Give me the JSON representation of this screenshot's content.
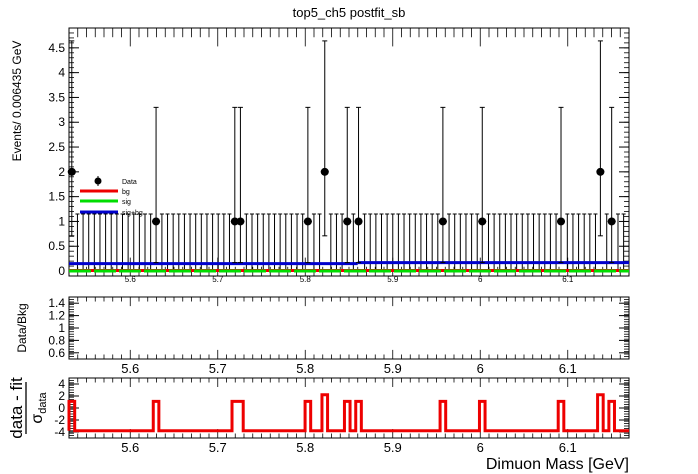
{
  "header": {
    "title": "top5_ch5   postfit_sb"
  },
  "legend": {
    "items": [
      {
        "label": "Data",
        "color": "#000000",
        "kind": "marker"
      },
      {
        "label": "bg",
        "color": "#ee0000",
        "kind": "line"
      },
      {
        "label": "sig",
        "color": "#00dd00",
        "kind": "line"
      },
      {
        "label": "sig+bg",
        "color": "#0000cc",
        "kind": "line"
      }
    ]
  },
  "chart_data": [
    {
      "type": "scatter",
      "panel": "main",
      "title": "top5_ch5   postfit_sb",
      "ylabel": "Events/ 0.006435 GeV",
      "xlim": [
        5.53,
        6.17
      ],
      "ylim": [
        -0.1,
        4.9
      ],
      "yticks": [
        0,
        0.5,
        1,
        1.5,
        2,
        2.5,
        3,
        3.5,
        4,
        4.5
      ],
      "ytick_labels": [
        "0",
        "0.5",
        "1",
        "1.5",
        "2",
        "2.5",
        "3",
        "3.5",
        "4",
        "4.5"
      ],
      "xticks": [
        5.6,
        5.7,
        5.8,
        5.9,
        6.0,
        6.1
      ],
      "xtick_labels": [
        "5.6",
        "5.7",
        "5.8",
        "5.9",
        "6",
        "6.1"
      ],
      "bin_width": 0.006435,
      "data_points": [
        {
          "x": 5.5332,
          "y": 2,
          "lo": 1.29,
          "hi": 2.64
        },
        {
          "x": 5.6295,
          "y": 1,
          "lo": 0.83,
          "hi": 2.3
        },
        {
          "x": 5.7195,
          "y": 1,
          "lo": 0.83,
          "hi": 2.3
        },
        {
          "x": 5.7259,
          "y": 1,
          "lo": 0.83,
          "hi": 2.3
        },
        {
          "x": 5.803,
          "y": 1,
          "lo": 0.83,
          "hi": 2.3
        },
        {
          "x": 5.8223,
          "y": 2,
          "lo": 1.29,
          "hi": 2.64
        },
        {
          "x": 5.848,
          "y": 1,
          "lo": 0.83,
          "hi": 2.3
        },
        {
          "x": 5.8609,
          "y": 1,
          "lo": 0.83,
          "hi": 2.3
        },
        {
          "x": 5.9573,
          "y": 1,
          "lo": 0.83,
          "hi": 2.3
        },
        {
          "x": 6.0023,
          "y": 1,
          "lo": 0.83,
          "hi": 2.3
        },
        {
          "x": 6.0923,
          "y": 1,
          "lo": 0.83,
          "hi": 2.3
        },
        {
          "x": 6.1373,
          "y": 2,
          "lo": 1.29,
          "hi": 2.64
        },
        {
          "x": 6.1502,
          "y": 1,
          "lo": 0.83,
          "hi": 2.3
        }
      ],
      "zero_bin_upper_error": 1.15,
      "series": [
        {
          "name": "bg",
          "color": "#ee0000",
          "y": 0.01
        },
        {
          "name": "sig",
          "color": "#00dd00",
          "y": 0.0,
          "dashed": true
        },
        {
          "name": "sig+bg",
          "color": "#0000cc",
          "segments": [
            {
              "x0": 5.53,
              "x1": 5.86,
              "y": 0.15
            },
            {
              "x0": 5.86,
              "x1": 6.17,
              "y": 0.17
            }
          ]
        }
      ]
    },
    {
      "type": "scatter",
      "panel": "ratio",
      "ylabel": "Data/Bkg",
      "xlim": [
        5.53,
        6.17
      ],
      "ylim": [
        0.5,
        1.5
      ],
      "yticks": [
        0.6,
        0.8,
        1,
        1.2,
        1.4
      ],
      "ytick_labels": [
        "0.6",
        "0.8",
        "1",
        "1.2",
        "1.4"
      ],
      "xticks": [
        5.6,
        5.7,
        5.8,
        5.9,
        6.0,
        6.1
      ],
      "xtick_labels": [
        "5.6",
        "5.7",
        "5.8",
        "5.9",
        "6",
        "6.1"
      ],
      "values": []
    },
    {
      "type": "line",
      "panel": "pull",
      "ylabel": "(data - fit) / σ_data",
      "ylabel_num": "data - fit",
      "ylabel_den": "σ",
      "ylabel_den_sub": "data",
      "xlabel": "Dimuon Mass [GeV]",
      "xlim": [
        5.53,
        6.17
      ],
      "ylim": [
        -5,
        5
      ],
      "yticks": [
        -4,
        -2,
        0,
        2,
        4
      ],
      "ytick_labels": [
        "-4",
        "-2",
        "0",
        "2",
        "4"
      ],
      "xticks": [
        5.6,
        5.7,
        5.8,
        5.9,
        6.0,
        6.1
      ],
      "xtick_labels": [
        "5.6",
        "5.7",
        "5.8",
        "5.9",
        "6",
        "6.1"
      ],
      "color": "#ee0000",
      "baseline": -3.8,
      "pulls": [
        {
          "x0": 5.53,
          "x1": 5.5365,
          "y": 1.1
        },
        {
          "x0": 5.6263,
          "x1": 5.6327,
          "y": 1.1
        },
        {
          "x0": 5.7163,
          "x1": 5.7291,
          "y": 1.1
        },
        {
          "x0": 5.7998,
          "x1": 5.8062,
          "y": 1.1
        },
        {
          "x0": 5.8191,
          "x1": 5.8255,
          "y": 2.2
        },
        {
          "x0": 5.8448,
          "x1": 5.8512,
          "y": 1.1
        },
        {
          "x0": 5.8577,
          "x1": 5.8641,
          "y": 1.1
        },
        {
          "x0": 5.9541,
          "x1": 5.9605,
          "y": 1.1
        },
        {
          "x0": 5.9991,
          "x1": 6.0055,
          "y": 1.1
        },
        {
          "x0": 6.0891,
          "x1": 6.0955,
          "y": 1.1
        },
        {
          "x0": 6.1341,
          "x1": 6.1405,
          "y": 2.2
        },
        {
          "x0": 6.147,
          "x1": 6.1534,
          "y": 1.1
        }
      ]
    }
  ]
}
